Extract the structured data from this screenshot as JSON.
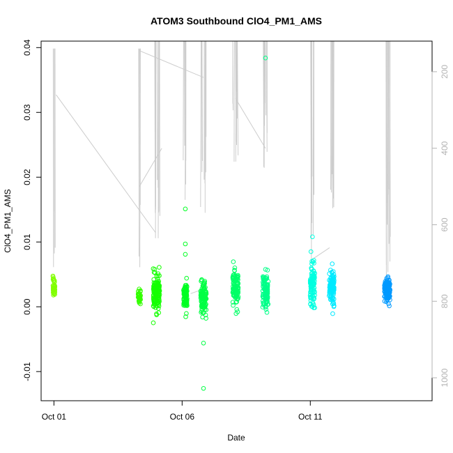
{
  "chart_data": {
    "type": "scatter",
    "title": "ATOM3 Southbound ClO4_PM1_AMS",
    "xlabel": "Date",
    "ylabel": "ClO4_PM1_AMS",
    "xlim": [
      "2017-09-30T12:00",
      "2017-10-15T18:00"
    ],
    "ylim": [
      -0.0145,
      0.041
    ],
    "x_ticks": [
      {
        "date": "2017-10-01",
        "label": "Oct 01"
      },
      {
        "date": "2017-10-06",
        "label": "Oct 06"
      },
      {
        "date": "2017-10-11",
        "label": "Oct 11"
      }
    ],
    "y_ticks": [
      {
        "value": -0.01,
        "label": "-0.01"
      },
      {
        "value": 0.0,
        "label": "0.00"
      },
      {
        "value": 0.01,
        "label": "0.01"
      },
      {
        "value": 0.02,
        "label": "0.02"
      },
      {
        "value": 0.03,
        "label": "0.03"
      },
      {
        "value": 0.04,
        "label": "0.04"
      }
    ],
    "secondary_axis": {
      "side": "right",
      "color": "#b3b3b3",
      "scale": "reversed",
      "lim": [
        120,
        1060
      ],
      "ticks": [
        {
          "value": 200,
          "label": "200"
        },
        {
          "value": 400,
          "label": "400"
        },
        {
          "value": 600,
          "label": "600"
        },
        {
          "value": 800,
          "label": "800"
        },
        {
          "value": 1000,
          "label": "1000"
        }
      ]
    },
    "grid": false,
    "legend": "none",
    "marker": "open-circle",
    "color_scale": [
      "#7fff00",
      "#00ff00",
      "#00ff7f",
      "#00ffff",
      "#007fff"
    ],
    "clusters": [
      {
        "date": "2017-10-01T00:00",
        "width_days": 0.08,
        "center": 0.003,
        "spread": 0.0011,
        "n": 40,
        "color": "#80ff00",
        "line_top_value": 145,
        "line_low_value": 490
      },
      {
        "date": "2017-10-04T08:00",
        "width_days": 0.1,
        "center": 0.0016,
        "spread": 0.0007,
        "n": 35,
        "color": "#33ff00",
        "line_top_value": 145,
        "line_low_value": 500
      },
      {
        "date": "2017-10-05T00:00",
        "width_days": 0.25,
        "center": 0.0022,
        "spread": 0.0018,
        "n": 140,
        "color": "#14ff00",
        "line_top_value": 120,
        "line_low_value": 460
      },
      {
        "date": "2017-10-06T03:00",
        "width_days": 0.14,
        "center": 0.0015,
        "spread": 0.0014,
        "n": 80,
        "color": "#00ff22",
        "line_top_value": 120,
        "line_low_value": 360
      },
      {
        "date": "2017-10-06T20:00",
        "width_days": 0.22,
        "center": 0.0013,
        "spread": 0.0016,
        "n": 110,
        "color": "#00ff44",
        "line_top_value": 120,
        "line_low_value": 320
      },
      {
        "date": "2017-10-08T02:00",
        "width_days": 0.22,
        "center": 0.0028,
        "spread": 0.0018,
        "n": 110,
        "color": "#00ff66",
        "line_top_value": 120,
        "line_low_value": 220
      },
      {
        "date": "2017-10-09T06:00",
        "width_days": 0.22,
        "center": 0.0024,
        "spread": 0.0018,
        "n": 110,
        "color": "#00ff88",
        "line_top_value": 120,
        "line_low_value": 280
      },
      {
        "date": "2017-10-11T02:00",
        "width_days": 0.18,
        "center": 0.0033,
        "spread": 0.0022,
        "n": 100,
        "color": "#00ffe0",
        "line_top_value": 120,
        "line_low_value": 450
      },
      {
        "date": "2017-10-11T20:00",
        "width_days": 0.2,
        "center": 0.003,
        "spread": 0.0019,
        "n": 110,
        "color": "#00eaff",
        "line_top_value": 120,
        "line_low_value": 400
      },
      {
        "date": "2017-10-14T00:00",
        "width_days": 0.22,
        "center": 0.0025,
        "spread": 0.0012,
        "n": 130,
        "color": "#0099ff",
        "line_top_value": 120,
        "line_low_value": 500
      }
    ],
    "outliers": [
      {
        "x": "2017-10-09T06:00",
        "y": 0.0384,
        "color": "#00ff88"
      },
      {
        "x": "2017-10-06T03:00",
        "y": 0.0151,
        "color": "#00ff22"
      },
      {
        "x": "2017-10-06T03:00",
        "y": 0.0097,
        "color": "#00ff22"
      },
      {
        "x": "2017-10-06T03:00",
        "y": 0.0081,
        "color": "#00ff22"
      },
      {
        "x": "2017-10-06T20:00",
        "y": -0.0056,
        "color": "#00ff44"
      },
      {
        "x": "2017-10-06T20:00",
        "y": -0.0126,
        "color": "#00ff44"
      },
      {
        "x": "2017-10-11T02:00",
        "y": 0.0108,
        "color": "#00ffe0"
      }
    ],
    "transit_lines": [
      {
        "from": [
          "2017-10-01T02:00",
          260
        ],
        "to": [
          "2017-10-04T23:00",
          620
        ]
      },
      {
        "from": [
          "2017-10-04T08:00",
          500
        ],
        "to": [
          "2017-10-05T05:00",
          400
        ]
      },
      {
        "from": [
          "2017-10-04T08:00",
          145
        ],
        "to": [
          "2017-10-06T20:00",
          215
        ]
      },
      {
        "from": [
          "2017-10-08T02:00",
          270
        ],
        "to": [
          "2017-10-09T06:00",
          400
        ]
      },
      {
        "from": [
          "2017-10-06T08:00",
          780
        ],
        "to": [
          "2017-10-06T18:00",
          770
        ]
      },
      {
        "from": [
          "2017-10-11T02:00",
          690
        ],
        "to": [
          "2017-10-11T18:00",
          660
        ]
      }
    ]
  }
}
